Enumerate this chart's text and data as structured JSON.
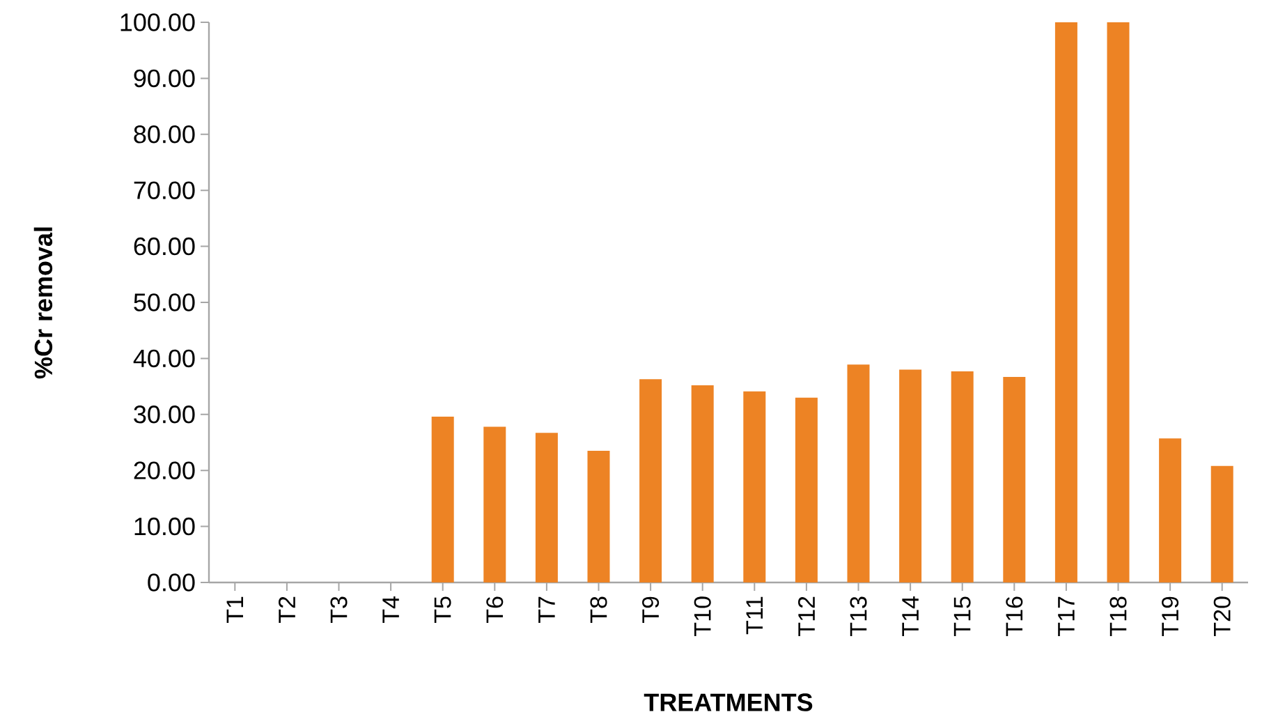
{
  "chart_data": {
    "type": "bar",
    "xlabel": "TREATMENTS",
    "ylabel": "%Cr removal",
    "categories": [
      "T1",
      "T2",
      "T3",
      "T4",
      "T5",
      "T6",
      "T7",
      "T8",
      "T9",
      "T10",
      "T11",
      "T12",
      "T13",
      "T14",
      "T15",
      "T16",
      "T17",
      "T18",
      "T19",
      "T20"
    ],
    "values": [
      0,
      0,
      0,
      0,
      29.6,
      27.8,
      26.7,
      23.5,
      36.3,
      35.2,
      34.1,
      33.0,
      38.9,
      38.0,
      37.7,
      36.7,
      100,
      100,
      25.7,
      20.8
    ],
    "color": "#ed8324",
    "ylim": [
      0,
      100
    ],
    "yticks": [
      {
        "value": 0,
        "label": "0.00"
      },
      {
        "value": 10,
        "label": "10.00"
      },
      {
        "value": 20,
        "label": "20.00"
      },
      {
        "value": 30,
        "label": "30.00"
      },
      {
        "value": 40,
        "label": "40.00"
      },
      {
        "value": 50,
        "label": "50.00"
      },
      {
        "value": 60,
        "label": "60.00"
      },
      {
        "value": 70,
        "label": "70.00"
      },
      {
        "value": 80,
        "label": "80.00"
      },
      {
        "value": 90,
        "label": "90.00"
      },
      {
        "value": 100,
        "label": "100.00"
      }
    ],
    "grid": false
  }
}
